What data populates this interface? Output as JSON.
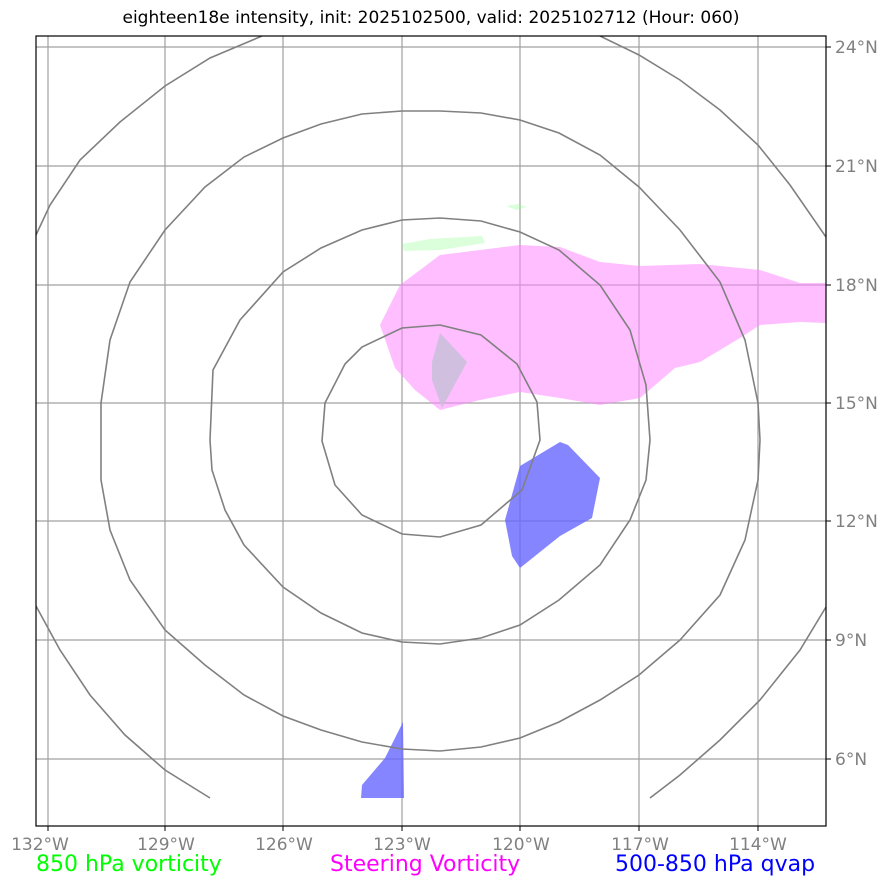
{
  "title": "eighteen18e intensity, init: 2025102500, valid: 2025102712 (Hour: 060)",
  "lon_labels": [
    "132°W",
    "129°W",
    "126°W",
    "123°W",
    "120°W",
    "117°W",
    "114°W"
  ],
  "lat_labels": [
    "24°N",
    "21°N",
    "18°N",
    "15°N",
    "12°N",
    "9°N",
    "6°N"
  ],
  "legend": {
    "vort850": {
      "label": "850 hPa vorticity",
      "color": "#00ff00"
    },
    "steering": {
      "label": "Steering Vorticity",
      "color": "#ff00ff"
    },
    "qvap": {
      "label": "500-850 hPa qvap",
      "color": "#0000ff"
    }
  },
  "map_extent": {
    "lon_min": -132.3,
    "lon_max": -112.3,
    "lat_min": 4.3,
    "lat_max": 24.3
  },
  "range_rings": {
    "center_lon": -122.1,
    "center_lat": 14.9,
    "count": 5
  },
  "fields": {
    "steering_vorticity": {
      "color": "#ff88ff",
      "opacity": 0.55
    },
    "vorticity_850": {
      "color": "#88ff88",
      "opacity": 0.3
    },
    "qvap_500_850": {
      "color": "#6666ff",
      "opacity": 0.8
    }
  }
}
